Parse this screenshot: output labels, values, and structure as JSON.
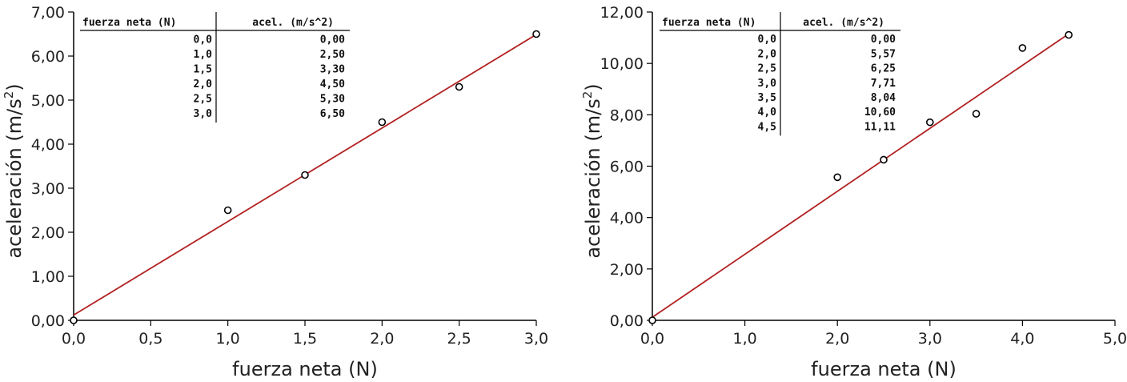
{
  "chart_data": [
    {
      "type": "scatter",
      "xlabel": "fuerza neta (N)",
      "ylabel_main": "aceleración (m/s",
      "ylabel_sup": "2",
      "ylabel_close": ")",
      "xlim": [
        0,
        3
      ],
      "ylim": [
        0,
        7
      ],
      "xticks": [
        "0,0",
        "0,5",
        "1,0",
        "1,5",
        "2,0",
        "2,5",
        "3,0"
      ],
      "xtick_values": [
        0,
        0.5,
        1,
        1.5,
        2,
        2.5,
        3
      ],
      "yticks": [
        "0,00",
        "1,00",
        "2,00",
        "3,00",
        "4,00",
        "5,00",
        "6,00",
        "7,00"
      ],
      "ytick_values": [
        0,
        1,
        2,
        3,
        4,
        5,
        6,
        7
      ],
      "grid": false,
      "points": {
        "x": [
          0.0,
          1.0,
          1.5,
          2.0,
          2.5,
          3.0
        ],
        "y": [
          0.0,
          2.5,
          3.3,
          4.5,
          5.3,
          6.5
        ]
      },
      "fit_line": {
        "x": [
          0,
          3.0
        ],
        "y": [
          0.12,
          6.49
        ]
      },
      "table": {
        "headers": [
          "fuerza neta (N)",
          "acel. (m/s^2)"
        ],
        "rows": [
          [
            "0,0",
            "0,00"
          ],
          [
            "1,0",
            "2,50"
          ],
          [
            "1,5",
            "3,30"
          ],
          [
            "2,0",
            "4,50"
          ],
          [
            "2,5",
            "5,30"
          ],
          [
            "3,0",
            "6,50"
          ]
        ]
      },
      "colors": {
        "fit": "#b22222",
        "points": "#000000"
      }
    },
    {
      "type": "scatter",
      "xlabel": "fuerza neta (N)",
      "ylabel_main": "aceleración (m/s",
      "ylabel_sup": "2",
      "ylabel_close": ")",
      "xlim": [
        0,
        5
      ],
      "ylim": [
        0,
        12
      ],
      "xticks": [
        "0,0",
        "1,0",
        "2,0",
        "3,0",
        "4,0",
        "5,0"
      ],
      "xtick_values": [
        0,
        1,
        2,
        3,
        4,
        5
      ],
      "yticks": [
        "0,00",
        "2,00",
        "4,00",
        "6,00",
        "8,00",
        "10,00",
        "12,00"
      ],
      "ytick_values": [
        0,
        2,
        4,
        6,
        8,
        10,
        12
      ],
      "grid": false,
      "points": {
        "x": [
          0.0,
          2.0,
          2.5,
          3.0,
          3.5,
          4.0,
          4.5
        ],
        "y": [
          0.0,
          5.57,
          6.25,
          7.71,
          8.04,
          10.6,
          11.11
        ]
      },
      "fit_line": {
        "x": [
          0,
          4.5
        ],
        "y": [
          0.12,
          11.15
        ]
      },
      "table": {
        "headers": [
          "fuerza neta (N)",
          "acel. (m/s^2)"
        ],
        "rows": [
          [
            "0,0",
            "0,00"
          ],
          [
            "2,0",
            "5,57"
          ],
          [
            "2,5",
            "6,25"
          ],
          [
            "3,0",
            "7,71"
          ],
          [
            "3,5",
            "8,04"
          ],
          [
            "4,0",
            "10,60"
          ],
          [
            "4,5",
            "11,11"
          ]
        ]
      },
      "colors": {
        "fit": "#b22222",
        "points": "#000000"
      }
    }
  ]
}
